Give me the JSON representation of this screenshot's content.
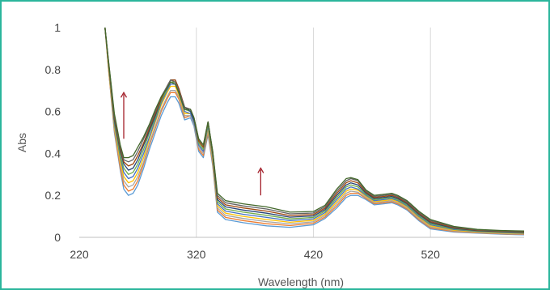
{
  "chart_data": {
    "type": "line",
    "title": "",
    "xlabel": "Wavelength (nm)",
    "ylabel": "Abs",
    "xlim": [
      220,
      600
    ],
    "ylim": [
      0,
      1
    ],
    "xticks": [
      220,
      320,
      420,
      520
    ],
    "yticks": [
      0,
      0.2,
      0.4,
      0.6,
      0.8,
      1
    ],
    "xtick_labels": [
      "220",
      "320",
      "420",
      "520"
    ],
    "ytick_labels": [
      "0",
      "0.2",
      "0.4",
      "0.6",
      "0.8",
      "1"
    ],
    "grid": "vertical",
    "legend": "none",
    "annotations": [
      {
        "type": "arrow",
        "direction": "up",
        "x": 258,
        "y_from": 0.47,
        "y_to": 0.69,
        "color": "#a31f2a"
      },
      {
        "type": "arrow",
        "direction": "up",
        "x": 375,
        "y_from": 0.2,
        "y_to": 0.33,
        "color": "#a31f2a"
      }
    ],
    "series": [
      {
        "color": "#5b9bd5",
        "x": [
          242,
          245,
          250,
          255,
          258,
          262,
          266,
          270,
          275,
          280,
          285,
          290,
          295,
          298,
          302,
          305,
          310,
          315,
          318,
          322,
          326,
          330,
          334,
          338,
          345,
          360,
          380,
          400,
          420,
          430,
          440,
          448,
          452,
          458,
          465,
          472,
          480,
          487,
          492,
          500,
          510,
          520,
          540,
          560,
          580,
          600
        ],
        "y": [
          1.0,
          0.8,
          0.5,
          0.32,
          0.23,
          0.2,
          0.21,
          0.25,
          0.33,
          0.42,
          0.5,
          0.58,
          0.64,
          0.67,
          0.67,
          0.64,
          0.56,
          0.57,
          0.53,
          0.41,
          0.38,
          0.49,
          0.34,
          0.12,
          0.085,
          0.07,
          0.055,
          0.048,
          0.06,
          0.09,
          0.14,
          0.19,
          0.2,
          0.2,
          0.18,
          0.155,
          0.16,
          0.165,
          0.155,
          0.13,
          0.08,
          0.04,
          0.025,
          0.02,
          0.015,
          0.012
        ]
      },
      {
        "color": "#ed7d31",
        "x": [
          242,
          245,
          250,
          255,
          258,
          262,
          266,
          270,
          275,
          280,
          285,
          290,
          295,
          298,
          302,
          305,
          310,
          315,
          318,
          322,
          326,
          330,
          334,
          338,
          345,
          360,
          380,
          400,
          420,
          430,
          440,
          448,
          452,
          458,
          465,
          472,
          480,
          487,
          492,
          500,
          510,
          520,
          540,
          560,
          580,
          600
        ],
        "y": [
          1.0,
          0.8,
          0.51,
          0.33,
          0.25,
          0.22,
          0.23,
          0.27,
          0.35,
          0.44,
          0.52,
          0.6,
          0.66,
          0.69,
          0.69,
          0.66,
          0.57,
          0.58,
          0.54,
          0.42,
          0.39,
          0.5,
          0.35,
          0.13,
          0.095,
          0.08,
          0.065,
          0.056,
          0.067,
          0.097,
          0.15,
          0.2,
          0.21,
          0.21,
          0.185,
          0.16,
          0.165,
          0.17,
          0.16,
          0.135,
          0.085,
          0.045,
          0.028,
          0.022,
          0.017,
          0.014
        ]
      },
      {
        "color": "#a5a5a5",
        "x": [
          242,
          245,
          250,
          255,
          258,
          262,
          266,
          270,
          275,
          280,
          285,
          290,
          295,
          298,
          302,
          305,
          310,
          315,
          318,
          322,
          326,
          330,
          334,
          338,
          345,
          360,
          380,
          400,
          420,
          430,
          440,
          448,
          452,
          458,
          465,
          472,
          480,
          487,
          492,
          500,
          510,
          520,
          540,
          560,
          580,
          600
        ],
        "y": [
          1.0,
          0.81,
          0.52,
          0.35,
          0.27,
          0.24,
          0.25,
          0.29,
          0.36,
          0.45,
          0.53,
          0.61,
          0.67,
          0.7,
          0.7,
          0.67,
          0.58,
          0.58,
          0.54,
          0.43,
          0.4,
          0.51,
          0.36,
          0.14,
          0.105,
          0.09,
          0.075,
          0.064,
          0.074,
          0.104,
          0.16,
          0.21,
          0.22,
          0.215,
          0.19,
          0.165,
          0.17,
          0.175,
          0.165,
          0.14,
          0.09,
          0.05,
          0.031,
          0.024,
          0.019,
          0.016
        ]
      },
      {
        "color": "#ffc000",
        "x": [
          242,
          245,
          250,
          255,
          258,
          262,
          266,
          270,
          275,
          280,
          285,
          290,
          295,
          298,
          302,
          305,
          310,
          315,
          318,
          322,
          326,
          330,
          334,
          338,
          345,
          360,
          380,
          400,
          420,
          430,
          440,
          448,
          452,
          458,
          465,
          472,
          480,
          487,
          492,
          500,
          510,
          520,
          540,
          560,
          580,
          600
        ],
        "y": [
          1.0,
          0.81,
          0.53,
          0.36,
          0.29,
          0.26,
          0.27,
          0.31,
          0.38,
          0.47,
          0.55,
          0.63,
          0.69,
          0.72,
          0.72,
          0.68,
          0.59,
          0.59,
          0.55,
          0.44,
          0.41,
          0.52,
          0.37,
          0.15,
          0.115,
          0.1,
          0.085,
          0.072,
          0.081,
          0.111,
          0.17,
          0.22,
          0.23,
          0.225,
          0.195,
          0.17,
          0.175,
          0.18,
          0.17,
          0.145,
          0.095,
          0.055,
          0.034,
          0.026,
          0.021,
          0.018
        ]
      },
      {
        "color": "#4472c4",
        "x": [
          242,
          245,
          250,
          255,
          258,
          262,
          266,
          270,
          275,
          280,
          285,
          290,
          295,
          298,
          302,
          305,
          310,
          315,
          318,
          322,
          326,
          330,
          334,
          338,
          345,
          360,
          380,
          400,
          420,
          430,
          440,
          448,
          452,
          458,
          465,
          472,
          480,
          487,
          492,
          500,
          510,
          520,
          540,
          560,
          580,
          600
        ],
        "y": [
          1.0,
          0.82,
          0.54,
          0.38,
          0.31,
          0.28,
          0.29,
          0.33,
          0.4,
          0.48,
          0.56,
          0.64,
          0.7,
          0.73,
          0.73,
          0.69,
          0.6,
          0.59,
          0.55,
          0.44,
          0.41,
          0.53,
          0.38,
          0.16,
          0.125,
          0.11,
          0.095,
          0.08,
          0.088,
          0.118,
          0.18,
          0.23,
          0.24,
          0.23,
          0.2,
          0.175,
          0.18,
          0.185,
          0.175,
          0.15,
          0.1,
          0.06,
          0.037,
          0.028,
          0.023,
          0.02
        ]
      },
      {
        "color": "#70ad47",
        "x": [
          242,
          245,
          250,
          255,
          258,
          262,
          266,
          270,
          275,
          280,
          285,
          290,
          295,
          298,
          302,
          305,
          310,
          315,
          318,
          322,
          326,
          330,
          334,
          338,
          345,
          360,
          380,
          400,
          420,
          430,
          440,
          448,
          452,
          458,
          465,
          472,
          480,
          487,
          492,
          500,
          510,
          520,
          540,
          560,
          580,
          600
        ],
        "y": [
          1.0,
          0.82,
          0.55,
          0.39,
          0.33,
          0.3,
          0.31,
          0.35,
          0.42,
          0.5,
          0.57,
          0.65,
          0.71,
          0.74,
          0.74,
          0.7,
          0.61,
          0.6,
          0.56,
          0.45,
          0.42,
          0.54,
          0.39,
          0.17,
          0.135,
          0.12,
          0.105,
          0.088,
          0.095,
          0.125,
          0.19,
          0.24,
          0.25,
          0.24,
          0.205,
          0.18,
          0.185,
          0.19,
          0.18,
          0.155,
          0.105,
          0.065,
          0.04,
          0.03,
          0.025,
          0.022
        ]
      },
      {
        "color": "#264478",
        "x": [
          242,
          245,
          250,
          255,
          258,
          262,
          266,
          270,
          275,
          280,
          285,
          290,
          295,
          298,
          302,
          305,
          310,
          315,
          318,
          322,
          326,
          330,
          334,
          338,
          345,
          360,
          380,
          400,
          420,
          430,
          440,
          448,
          452,
          458,
          465,
          472,
          480,
          487,
          492,
          500,
          510,
          520,
          540,
          560,
          580,
          600
        ],
        "y": [
          1.0,
          0.83,
          0.56,
          0.41,
          0.35,
          0.32,
          0.33,
          0.37,
          0.44,
          0.51,
          0.58,
          0.66,
          0.72,
          0.75,
          0.75,
          0.71,
          0.62,
          0.6,
          0.56,
          0.46,
          0.43,
          0.55,
          0.4,
          0.18,
          0.145,
          0.13,
          0.115,
          0.096,
          0.102,
          0.132,
          0.2,
          0.25,
          0.26,
          0.25,
          0.21,
          0.185,
          0.19,
          0.195,
          0.185,
          0.16,
          0.11,
          0.07,
          0.043,
          0.032,
          0.027,
          0.024
        ]
      },
      {
        "color": "#9e480e",
        "x": [
          242,
          245,
          250,
          255,
          258,
          262,
          266,
          270,
          275,
          280,
          285,
          290,
          295,
          298,
          302,
          305,
          310,
          315,
          318,
          322,
          326,
          330,
          334,
          338,
          345,
          360,
          380,
          400,
          420,
          430,
          440,
          448,
          452,
          458,
          465,
          472,
          480,
          487,
          492,
          500,
          510,
          520,
          540,
          560,
          580,
          600
        ],
        "y": [
          1.0,
          0.83,
          0.57,
          0.42,
          0.36,
          0.34,
          0.35,
          0.39,
          0.45,
          0.52,
          0.59,
          0.66,
          0.72,
          0.75,
          0.75,
          0.71,
          0.62,
          0.61,
          0.57,
          0.46,
          0.43,
          0.55,
          0.4,
          0.19,
          0.155,
          0.14,
          0.125,
          0.104,
          0.109,
          0.139,
          0.21,
          0.26,
          0.27,
          0.26,
          0.215,
          0.19,
          0.195,
          0.2,
          0.19,
          0.165,
          0.115,
          0.075,
          0.046,
          0.034,
          0.029,
          0.026
        ]
      },
      {
        "color": "#636363",
        "x": [
          242,
          245,
          250,
          255,
          258,
          262,
          266,
          270,
          275,
          280,
          285,
          290,
          295,
          298,
          302,
          305,
          310,
          315,
          318,
          322,
          326,
          330,
          334,
          338,
          345,
          360,
          380,
          400,
          420,
          430,
          440,
          448,
          452,
          458,
          465,
          472,
          480,
          487,
          492,
          500,
          510,
          520,
          540,
          560,
          580,
          600
        ],
        "y": [
          1.0,
          0.84,
          0.58,
          0.43,
          0.37,
          0.36,
          0.37,
          0.41,
          0.47,
          0.53,
          0.6,
          0.67,
          0.72,
          0.75,
          0.74,
          0.7,
          0.62,
          0.61,
          0.57,
          0.47,
          0.44,
          0.55,
          0.41,
          0.2,
          0.165,
          0.15,
          0.135,
          0.112,
          0.116,
          0.146,
          0.22,
          0.27,
          0.28,
          0.27,
          0.22,
          0.195,
          0.2,
          0.205,
          0.195,
          0.17,
          0.12,
          0.08,
          0.049,
          0.036,
          0.031,
          0.028
        ]
      },
      {
        "color": "#43682b",
        "x": [
          242,
          245,
          250,
          255,
          258,
          262,
          266,
          270,
          275,
          280,
          285,
          290,
          295,
          298,
          302,
          305,
          310,
          315,
          318,
          322,
          326,
          330,
          334,
          338,
          345,
          360,
          380,
          400,
          420,
          430,
          440,
          448,
          452,
          458,
          465,
          472,
          480,
          487,
          492,
          500,
          510,
          520,
          540,
          560,
          580,
          600
        ],
        "y": [
          1.0,
          0.84,
          0.59,
          0.44,
          0.38,
          0.38,
          0.39,
          0.43,
          0.48,
          0.54,
          0.61,
          0.67,
          0.71,
          0.74,
          0.73,
          0.69,
          0.61,
          0.61,
          0.57,
          0.47,
          0.44,
          0.55,
          0.41,
          0.21,
          0.175,
          0.16,
          0.145,
          0.12,
          0.123,
          0.153,
          0.23,
          0.28,
          0.285,
          0.275,
          0.225,
          0.2,
          0.205,
          0.21,
          0.2,
          0.175,
          0.125,
          0.085,
          0.052,
          0.038,
          0.033,
          0.03
        ]
      }
    ]
  }
}
